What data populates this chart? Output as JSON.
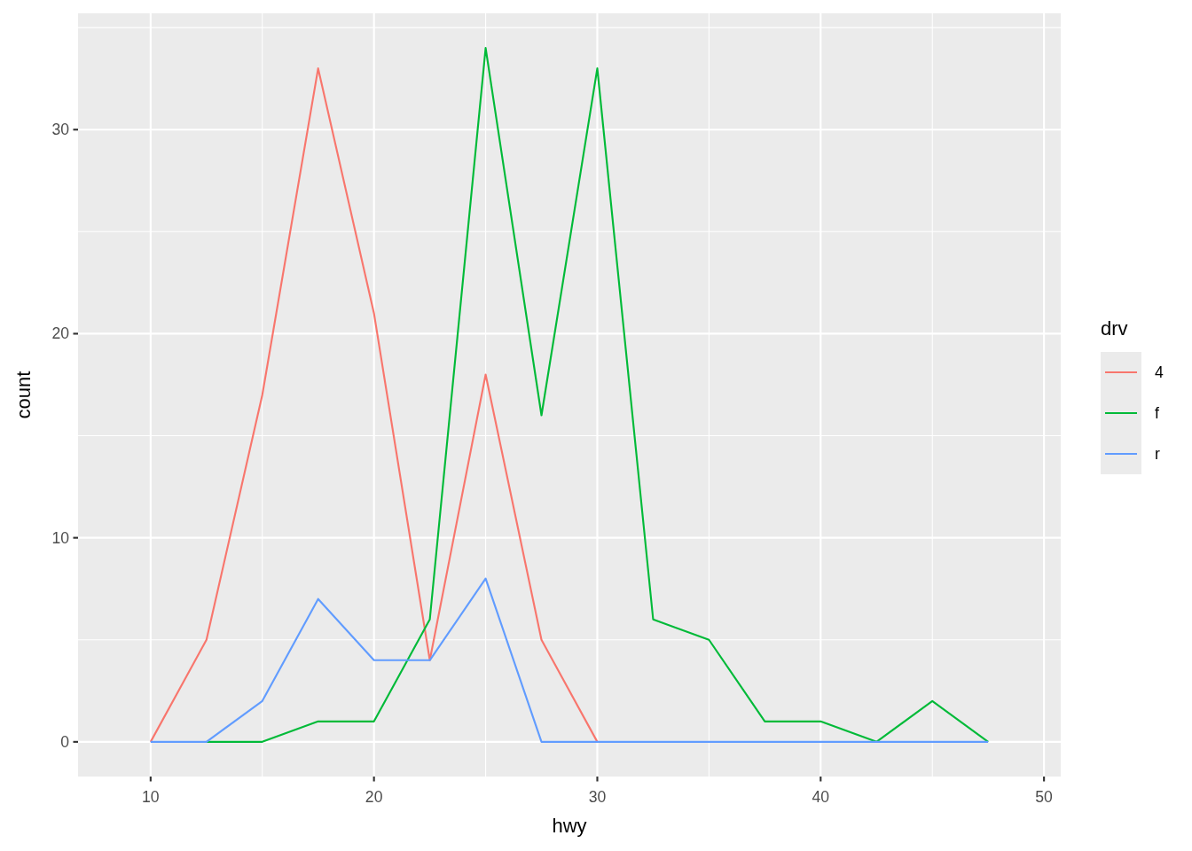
{
  "chart_data": {
    "type": "line",
    "xlabel": "hwy",
    "ylabel": "count",
    "legend_title": "drv",
    "x": [
      10,
      12.5,
      15,
      17.5,
      20,
      22.5,
      25,
      27.5,
      30,
      32.5,
      35,
      37.5,
      40,
      42.5,
      45,
      47.5
    ],
    "series": [
      {
        "name": "4",
        "color": "#f8766d",
        "values": [
          0,
          5,
          17,
          33,
          21,
          4,
          18,
          5,
          0,
          null,
          null,
          null,
          null,
          null,
          null,
          null
        ]
      },
      {
        "name": "f",
        "color": "#00ba38",
        "values": [
          null,
          0,
          0,
          1,
          1,
          6,
          34,
          16,
          33,
          6,
          5,
          1,
          1,
          0,
          2,
          0
        ]
      },
      {
        "name": "r",
        "color": "#619cff",
        "values": [
          0,
          0,
          2,
          7,
          4,
          4,
          8,
          0,
          0,
          0,
          0,
          0,
          0,
          0,
          0,
          0
        ]
      }
    ],
    "xlim": [
      6.75,
      50.75
    ],
    "ylim": [
      -1.7,
      35.7
    ],
    "xticks": [
      10,
      20,
      30,
      40,
      50
    ],
    "yticks": [
      0,
      10,
      20,
      30
    ],
    "grid": true,
    "legend": "right"
  }
}
